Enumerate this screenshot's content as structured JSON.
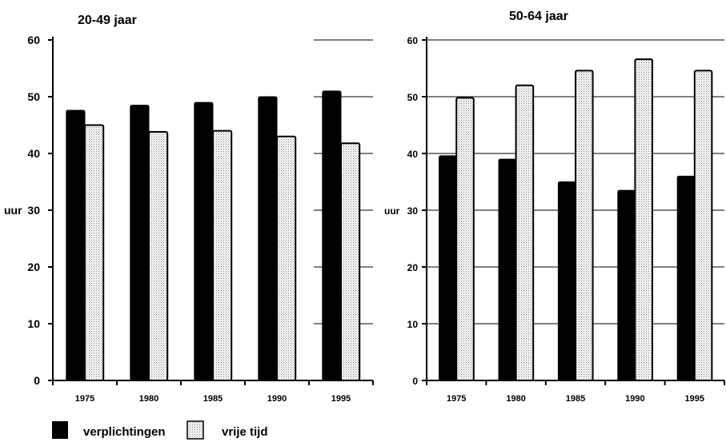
{
  "chart_data": [
    {
      "type": "bar",
      "title": "20-49 jaar",
      "ylabel": "uur",
      "categories": [
        "1975",
        "1980",
        "1985",
        "1990",
        "1995"
      ],
      "y_ticks": [
        "0",
        "10",
        "20",
        "30",
        "40",
        "50",
        "60"
      ],
      "ylim": [
        0,
        60
      ],
      "grid": true,
      "series": [
        {
          "name": "verplichtingen",
          "values": [
            47.6,
            48.5,
            49.0,
            50.0,
            51.0
          ]
        },
        {
          "name": "vrije tijd",
          "values": [
            45.0,
            43.8,
            44.0,
            43.0,
            41.8
          ]
        }
      ]
    },
    {
      "type": "bar",
      "title": "50-64 jaar",
      "ylabel": "uur",
      "categories": [
        "1975",
        "1980",
        "1985",
        "1990",
        "1995"
      ],
      "y_ticks": [
        "0",
        "10",
        "20",
        "30",
        "40",
        "50",
        "60"
      ],
      "ylim": [
        0,
        60
      ],
      "grid": true,
      "series": [
        {
          "name": "verplichtingen",
          "values": [
            39.6,
            39.0,
            35.0,
            33.5,
            36.0
          ]
        },
        {
          "name": "vrije tijd",
          "values": [
            49.8,
            52.0,
            54.6,
            56.6,
            54.6
          ]
        }
      ]
    }
  ],
  "legend": {
    "position": "bottom-left",
    "items": [
      {
        "label": "verplichtingen",
        "color": "#000000"
      },
      {
        "label": "vrije tijd",
        "color": "#cccccc"
      }
    ]
  }
}
